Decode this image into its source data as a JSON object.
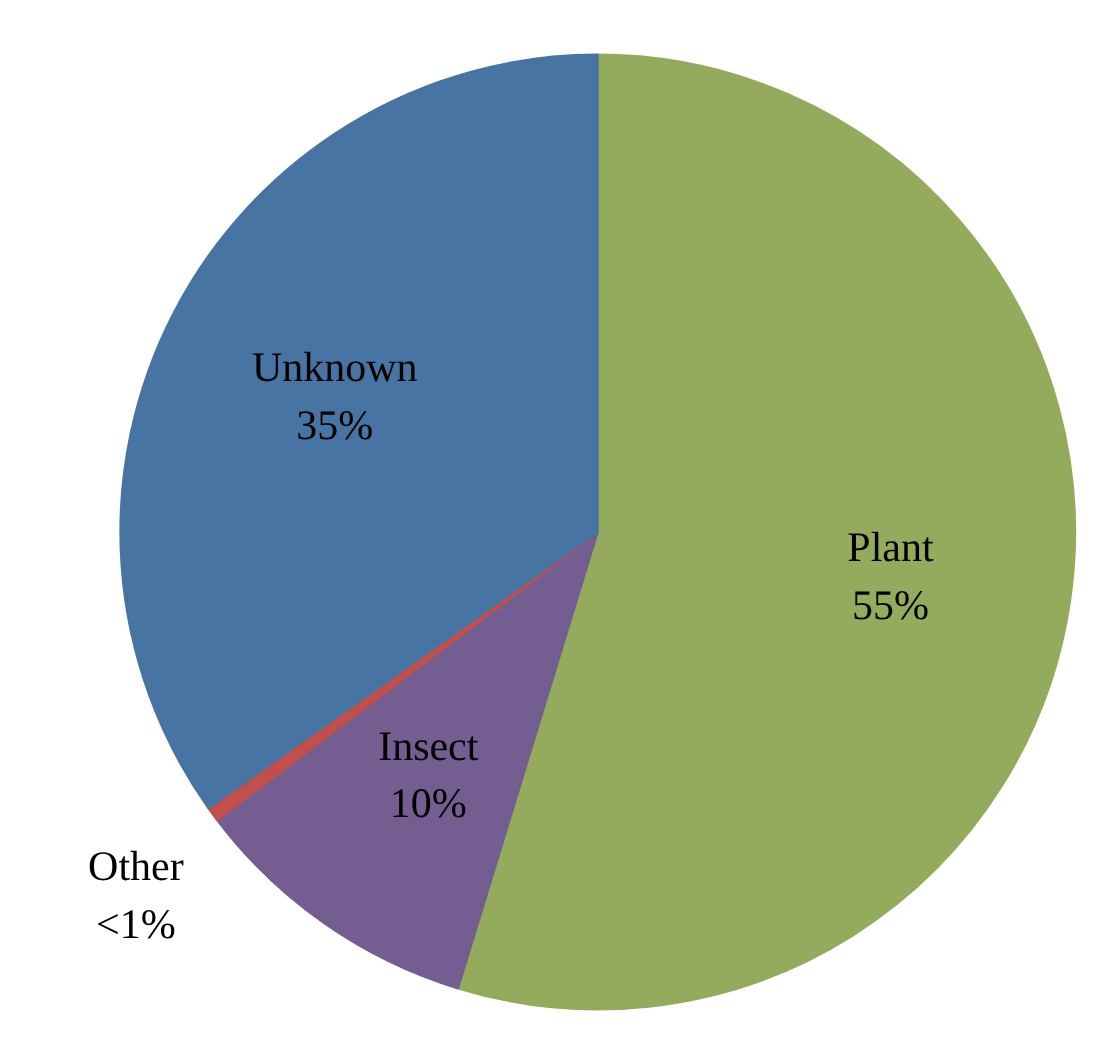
{
  "chart_data": {
    "type": "pie",
    "categories": [
      "Plant",
      "Insect",
      "Other",
      "Unknown"
    ],
    "values": [
      55,
      10,
      0.5,
      35
    ],
    "value_labels": [
      "55%",
      "10%",
      "<1%",
      "35%"
    ],
    "colors": [
      "#94aa5c",
      "#735d91",
      "#c0504d",
      "#4774a2"
    ]
  }
}
